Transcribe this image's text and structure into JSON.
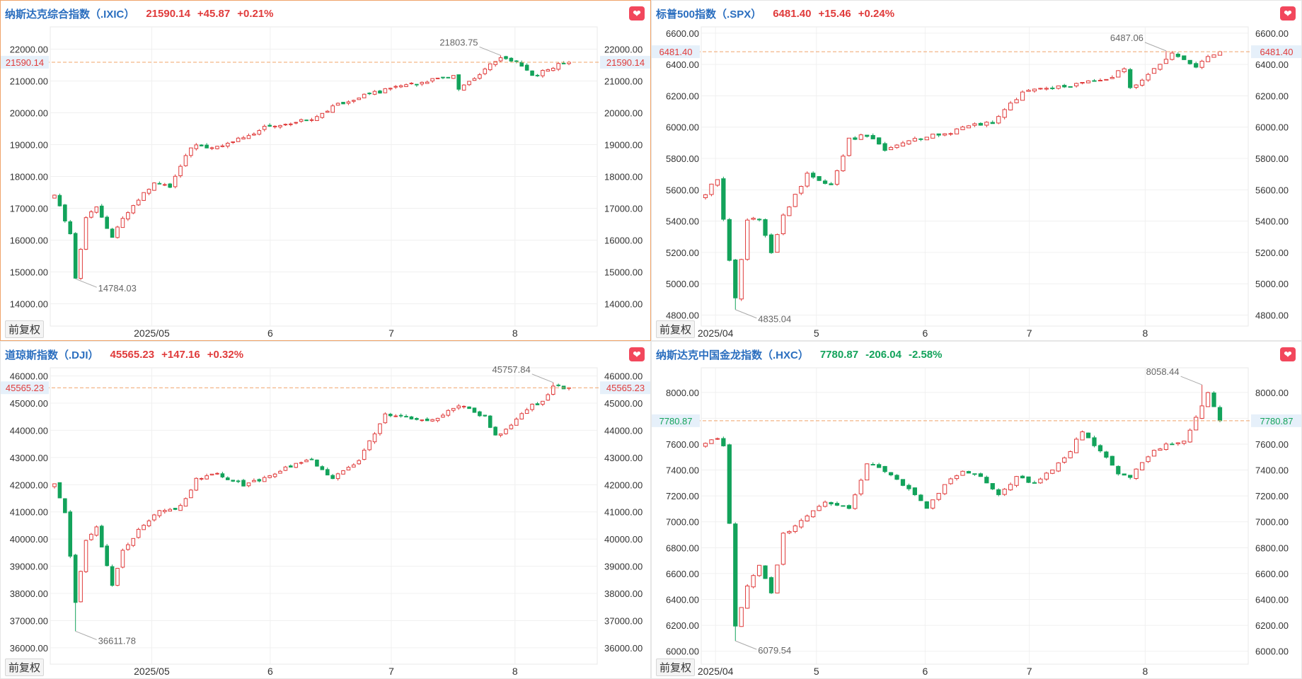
{
  "toolbar": {
    "adjust_label": "前复权"
  },
  "colors": {
    "up": "#e03b3b",
    "down": "#13a35b",
    "title": "#2a6ebf",
    "price_line": "#f0a46a",
    "fav": "#f2475c"
  },
  "icons": {
    "favorite": "heart-icon"
  },
  "chart_data": [
    {
      "type": "candlestick",
      "name": "纳斯达克综合指数（.IXIC）",
      "price": "21590.14",
      "change": "+45.87",
      "change_pct": "+0.21%",
      "direction": "up",
      "price_label": "21590.14",
      "ticks": [
        22000,
        21000,
        20000,
        19000,
        18000,
        17000,
        16000,
        15000,
        14000
      ],
      "tick_labels": [
        "22000.00",
        "21000.00",
        "20000.00",
        "19000.00",
        "18000.00",
        "17000.00",
        "16000.00",
        "15000.00",
        "14000.00"
      ],
      "ylim": [
        13300,
        22700
      ],
      "x_labels": [
        "2025/05",
        "6",
        "7",
        "8"
      ],
      "x_label_pos": [
        0.232,
        0.414,
        0.6,
        0.79
      ],
      "n": 99,
      "high": {
        "value": 21803.75,
        "label": "21803.75",
        "index": 85
      },
      "low": {
        "value": 14784.03,
        "label": "14784.03",
        "index": 4
      },
      "start": 17470,
      "end": 21590.14,
      "anchors": [
        [
          0,
          17470
        ],
        [
          3,
          16200
        ],
        [
          4,
          14784
        ],
        [
          6,
          16700
        ],
        [
          8,
          17000
        ],
        [
          11,
          16100
        ],
        [
          13,
          16700
        ],
        [
          16,
          17300
        ],
        [
          19,
          17800
        ],
        [
          22,
          17700
        ],
        [
          25,
          18700
        ],
        [
          27,
          19000
        ],
        [
          31,
          18900
        ],
        [
          37,
          19300
        ],
        [
          41,
          19600
        ],
        [
          45,
          19700
        ],
        [
          49,
          19800
        ],
        [
          53,
          20200
        ],
        [
          58,
          20500
        ],
        [
          64,
          20750
        ],
        [
          70,
          20950
        ],
        [
          76,
          21200
        ],
        [
          77,
          20700
        ],
        [
          80,
          21100
        ],
        [
          85,
          21780
        ],
        [
          89,
          21500
        ],
        [
          91,
          21150
        ],
        [
          95,
          21450
        ],
        [
          98,
          21590
        ]
      ]
    },
    {
      "type": "candlestick",
      "name": "标普500指数（.SPX）",
      "price": "6481.40",
      "change": "+15.46",
      "change_pct": "+0.24%",
      "direction": "up",
      "price_label": "6481.40",
      "ticks": [
        6600,
        6400,
        6200,
        6000,
        5800,
        5600,
        5400,
        5200,
        5000,
        4800
      ],
      "tick_labels": [
        "6600.00",
        "6400.00",
        "6200.00",
        "6000.00",
        "5800.00",
        "5600.00",
        "5400.00",
        "5200.00",
        "5000.00",
        "4800.00"
      ],
      "ylim": [
        4730,
        6640
      ],
      "x_labels": [
        "2025/04",
        "5",
        "6",
        "7",
        "8"
      ],
      "x_label_pos": [
        0.098,
        0.253,
        0.42,
        0.58,
        0.758
      ],
      "n": 87,
      "high": {
        "value": 6487.06,
        "label": "6487.06",
        "index": 77
      },
      "low": {
        "value": 4835.04,
        "label": "4835.04",
        "index": 5
      },
      "start": 5580,
      "end": 6481.4,
      "anchors": [
        [
          0,
          5580
        ],
        [
          2,
          5670
        ],
        [
          4,
          5150
        ],
        [
          5,
          4900
        ],
        [
          7,
          5400
        ],
        [
          9,
          5420
        ],
        [
          11,
          5200
        ],
        [
          13,
          5430
        ],
        [
          17,
          5700
        ],
        [
          21,
          5630
        ],
        [
          24,
          5920
        ],
        [
          27,
          5950
        ],
        [
          30,
          5850
        ],
        [
          35,
          5920
        ],
        [
          41,
          5970
        ],
        [
          45,
          6020
        ],
        [
          48,
          6030
        ],
        [
          53,
          6220
        ],
        [
          58,
          6250
        ],
        [
          63,
          6280
        ],
        [
          67,
          6300
        ],
        [
          70,
          6380
        ],
        [
          71,
          6250
        ],
        [
          74,
          6330
        ],
        [
          78,
          6470
        ],
        [
          82,
          6380
        ],
        [
          84,
          6440
        ],
        [
          86,
          6481
        ]
      ]
    },
    {
      "type": "candlestick",
      "name": "道琼斯指数（.DJI）",
      "price": "45565.23",
      "change": "+147.16",
      "change_pct": "+0.32%",
      "direction": "up",
      "price_label": "45565.23",
      "ticks": [
        46000,
        45000,
        44000,
        43000,
        42000,
        41000,
        40000,
        39000,
        38000,
        37000,
        36000
      ],
      "tick_labels": [
        "46000.00",
        "45000.00",
        "44000.00",
        "43000.00",
        "42000.00",
        "41000.00",
        "40000.00",
        "39000.00",
        "38000.00",
        "37000.00",
        "36000.00"
      ],
      "ylim": [
        35400,
        46300
      ],
      "x_labels": [
        "2025/05",
        "6",
        "7",
        "8"
      ],
      "x_label_pos": [
        0.232,
        0.414,
        0.6,
        0.79
      ],
      "n": 99,
      "high": {
        "value": 45757.84,
        "label": "45757.84",
        "index": 95
      },
      "low": {
        "value": 36611.78,
        "label": "36611.78",
        "index": 4
      },
      "start": 42100,
      "end": 45565.23,
      "anchors": [
        [
          0,
          42100
        ],
        [
          2,
          41000
        ],
        [
          4,
          37700
        ],
        [
          6,
          39900
        ],
        [
          8,
          40400
        ],
        [
          11,
          38300
        ],
        [
          13,
          39600
        ],
        [
          16,
          40300
        ],
        [
          20,
          41000
        ],
        [
          24,
          41200
        ],
        [
          27,
          42200
        ],
        [
          31,
          42400
        ],
        [
          36,
          42000
        ],
        [
          41,
          42300
        ],
        [
          45,
          42700
        ],
        [
          49,
          42900
        ],
        [
          53,
          42200
        ],
        [
          58,
          42900
        ],
        [
          63,
          44600
        ],
        [
          67,
          44500
        ],
        [
          71,
          44300
        ],
        [
          75,
          44700
        ],
        [
          78,
          44900
        ],
        [
          82,
          44500
        ],
        [
          84,
          43800
        ],
        [
          87,
          44200
        ],
        [
          91,
          44900
        ],
        [
          93,
          45100
        ],
        [
          95,
          45600
        ],
        [
          98,
          45565
        ]
      ]
    },
    {
      "type": "candlestick",
      "name": "纳斯达克中国金龙指数（.HXC）",
      "price": "7780.87",
      "change": "-206.04",
      "change_pct": "-2.58%",
      "direction": "down",
      "price_label": "7780.87",
      "ticks": [
        8000,
        7800,
        7600,
        7400,
        7200,
        7000,
        6800,
        6600,
        6400,
        6200,
        6000
      ],
      "tick_labels": [
        "8000.00",
        "7800.00",
        "7600.00",
        "7400.00",
        "7200.00",
        "7000.00",
        "6800.00",
        "6600.00",
        "6400.00",
        "6200.00",
        "6000.00"
      ],
      "ylim": [
        5900,
        8190
      ],
      "x_labels": [
        "2025/04",
        "5",
        "6",
        "7",
        "8"
      ],
      "x_label_pos": [
        0.098,
        0.253,
        0.42,
        0.58,
        0.758
      ],
      "n": 87,
      "high": {
        "value": 8058.44,
        "label": "8058.44",
        "index": 83
      },
      "low": {
        "value": 6079.54,
        "label": "6079.54",
        "index": 5
      },
      "start": 7620,
      "end": 7780.87,
      "anchors": [
        [
          0,
          7620
        ],
        [
          2,
          7650
        ],
        [
          3,
          7580
        ],
        [
          4,
          7000
        ],
        [
          5,
          6200
        ],
        [
          7,
          6500
        ],
        [
          9,
          6650
        ],
        [
          11,
          6450
        ],
        [
          13,
          6900
        ],
        [
          16,
          7000
        ],
        [
          20,
          7150
        ],
        [
          24,
          7100
        ],
        [
          27,
          7450
        ],
        [
          30,
          7400
        ],
        [
          34,
          7250
        ],
        [
          37,
          7100
        ],
        [
          40,
          7300
        ],
        [
          43,
          7400
        ],
        [
          46,
          7350
        ],
        [
          49,
          7200
        ],
        [
          52,
          7350
        ],
        [
          55,
          7300
        ],
        [
          58,
          7400
        ],
        [
          61,
          7550
        ],
        [
          63,
          7700
        ],
        [
          65,
          7600
        ],
        [
          67,
          7500
        ],
        [
          69,
          7380
        ],
        [
          71,
          7350
        ],
        [
          73,
          7450
        ],
        [
          75,
          7550
        ],
        [
          77,
          7600
        ],
        [
          80,
          7620
        ],
        [
          82,
          7800
        ],
        [
          84,
          8000
        ],
        [
          86,
          7780
        ]
      ]
    }
  ]
}
